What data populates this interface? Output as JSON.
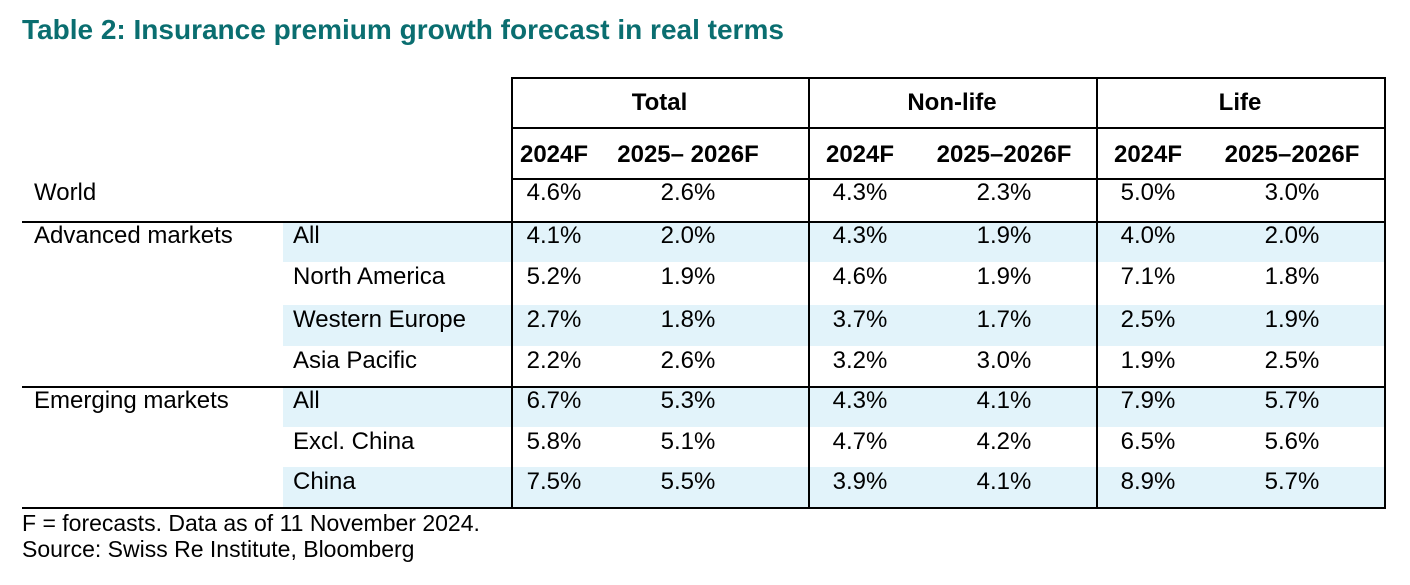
{
  "title": "Table 2: Insurance premium growth forecast in real terms",
  "colors": {
    "title": "#0a6e70",
    "row_shading": "#e2f3fa",
    "border": "#000000"
  },
  "table": {
    "groups": [
      "Total",
      "Non-life",
      "Life"
    ],
    "subheaders": [
      "2024F",
      "2025– 2026F",
      "2024F",
      "2025–2026F",
      "2024F",
      "2025–2026F"
    ],
    "rows": [
      {
        "region": "World",
        "sub": "",
        "values": [
          "4.6%",
          "2.6%",
          "4.3%",
          "2.3%",
          "5.0%",
          "3.0%"
        ]
      },
      {
        "region": "Advanced markets",
        "sub": "All",
        "values": [
          "4.1%",
          "2.0%",
          "4.3%",
          "1.9%",
          "4.0%",
          "2.0%"
        ]
      },
      {
        "region": "",
        "sub": "North America",
        "values": [
          "5.2%",
          "1.9%",
          "4.6%",
          "1.9%",
          "7.1%",
          "1.8%"
        ]
      },
      {
        "region": "",
        "sub": "Western Europe",
        "values": [
          "2.7%",
          "1.8%",
          "3.7%",
          "1.7%",
          "2.5%",
          "1.9%"
        ]
      },
      {
        "region": "",
        "sub": "Asia Pacific",
        "values": [
          "2.2%",
          "2.6%",
          "3.2%",
          "3.0%",
          "1.9%",
          "2.5%"
        ]
      },
      {
        "region": "Emerging markets",
        "sub": "All",
        "values": [
          "6.7%",
          "5.3%",
          "4.3%",
          "4.1%",
          "7.9%",
          "5.7%"
        ]
      },
      {
        "region": "",
        "sub": "Excl. China",
        "values": [
          "5.8%",
          "5.1%",
          "4.7%",
          "4.2%",
          "6.5%",
          "5.6%"
        ]
      },
      {
        "region": "",
        "sub": "China",
        "values": [
          "7.5%",
          "5.5%",
          "3.9%",
          "4.1%",
          "8.9%",
          "5.7%"
        ]
      }
    ]
  },
  "footnotes": [
    "F = forecasts. Data as of 11 November 2024.",
    "Source: Swiss Re Institute, Bloomberg"
  ]
}
